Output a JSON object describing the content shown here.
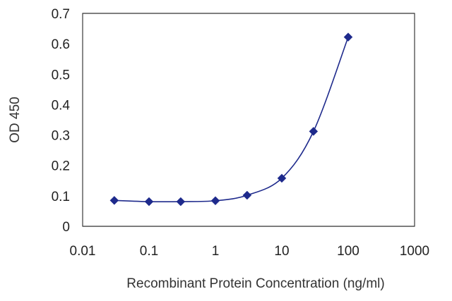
{
  "chart_data": {
    "type": "line",
    "title": "",
    "xlabel": "Recombinant Protein Concentration (ng/ml)",
    "ylabel": "OD 450",
    "x_scale": "log",
    "xlim": [
      0.01,
      1000
    ],
    "ylim": [
      0,
      0.7
    ],
    "x_ticks": [
      0.01,
      0.1,
      1,
      10,
      100,
      1000
    ],
    "x_tick_labels": [
      "0.01",
      "0.1",
      "1",
      "10",
      "100",
      "1000"
    ],
    "y_ticks": [
      0,
      0.1,
      0.2,
      0.3,
      0.4,
      0.5,
      0.6,
      0.7
    ],
    "y_tick_labels": [
      "0",
      "0.1",
      "0.2",
      "0.3",
      "0.4",
      "0.5",
      "0.6",
      "0.7"
    ],
    "grid": "horizontal",
    "series": [
      {
        "x": [
          0.03,
          0.1,
          0.3,
          1,
          3,
          10,
          30,
          100
        ],
        "y": [
          0.085,
          0.081,
          0.081,
          0.084,
          0.102,
          0.158,
          0.312,
          0.622
        ]
      }
    ],
    "colors": {
      "series": "#1e2a8c",
      "plot_background": "#ffffff",
      "grid": "#3a3a3a"
    }
  }
}
